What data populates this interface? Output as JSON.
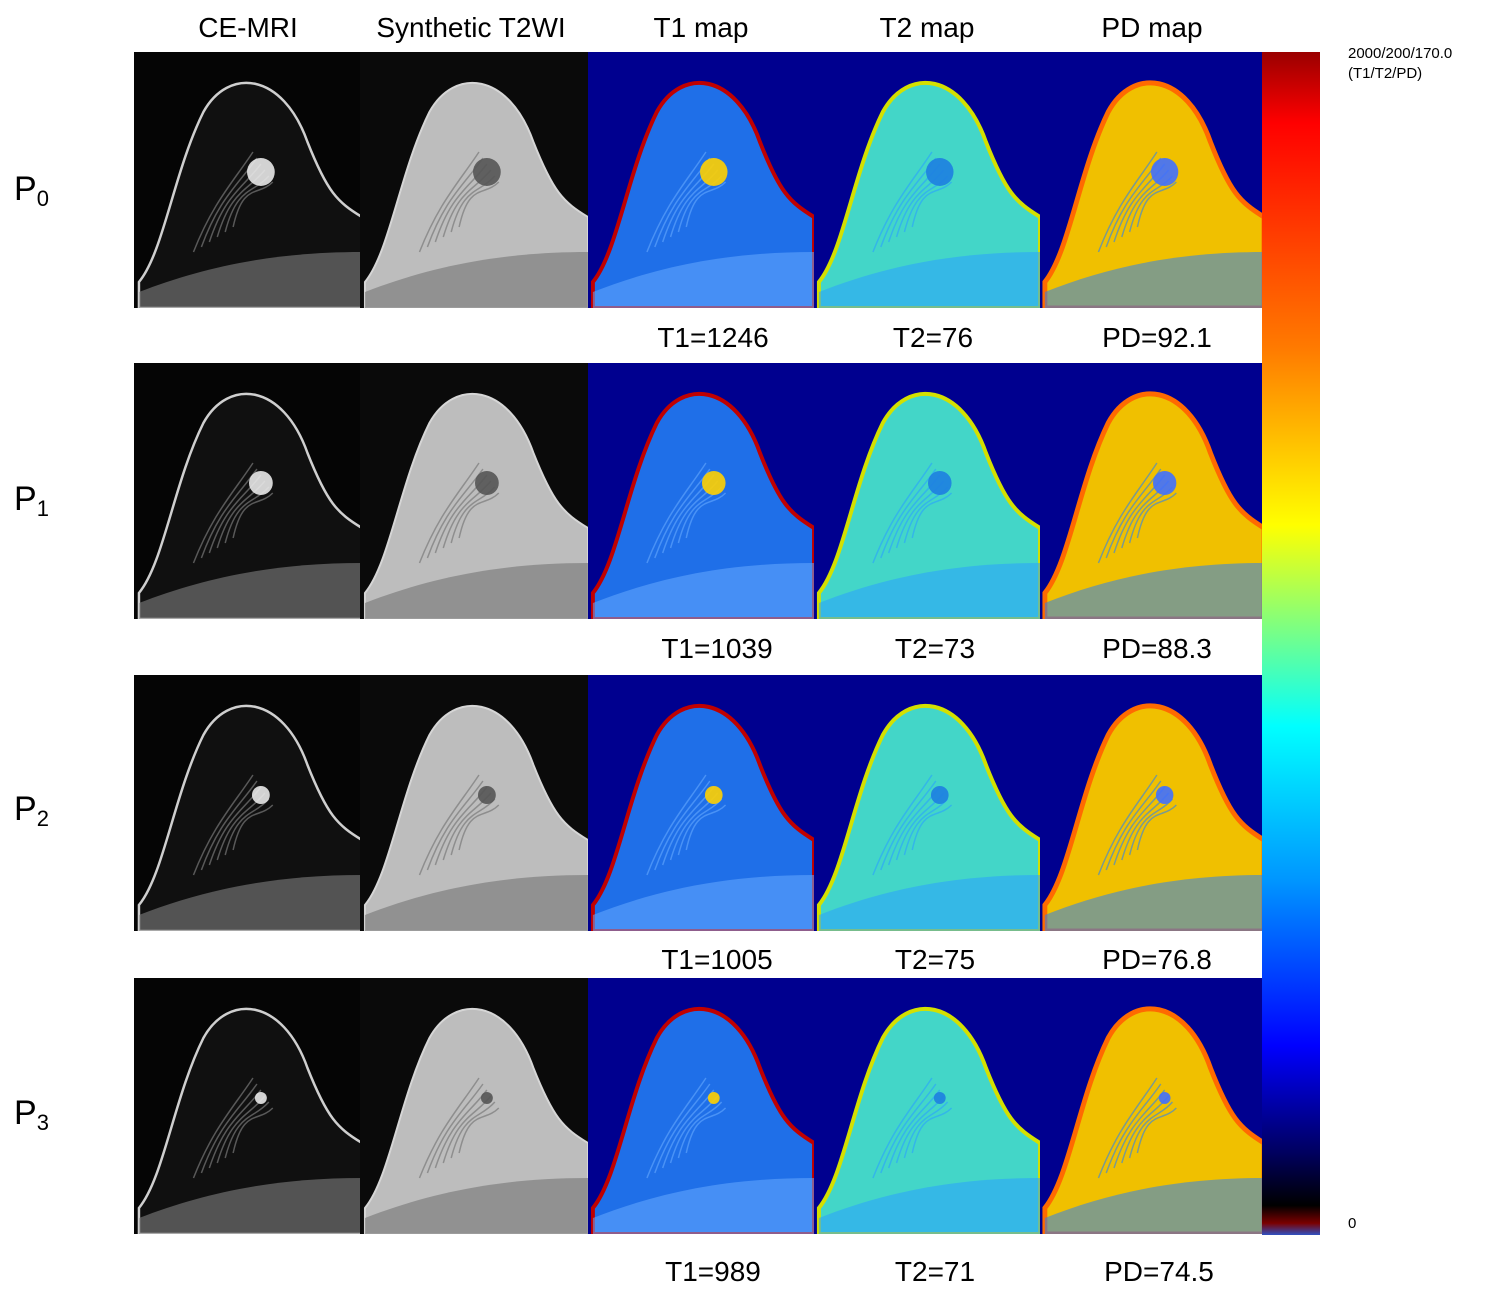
{
  "columns": [
    "CE-MRI",
    "Synthetic T2WI",
    "T1 map",
    "T2 map",
    "PD map"
  ],
  "rows": [
    {
      "letter": "P",
      "index": "0",
      "t1": "T1=1246",
      "t2": "T2=76",
      "pd": "PD=92.1"
    },
    {
      "letter": "P",
      "index": "1",
      "t1": "T1=1039",
      "t2": "T2=73",
      "pd": "PD=88.3"
    },
    {
      "letter": "P",
      "index": "2",
      "t1": "T1=1005",
      "t2": "T2=75",
      "pd": "PD=76.8"
    },
    {
      "letter": "P",
      "index": "3",
      "t1": "T1=989",
      "t2": "T2=71",
      "pd": "PD=74.5"
    }
  ],
  "colorbar": {
    "max_label": "2000/200/170.0",
    "max_sublabel": "(T1/T2/PD)",
    "min_label": "0"
  },
  "colors": {
    "map_background": "#00008f",
    "t1_tissue": "#1f6fe8",
    "t2_tissue": "#43d6c8",
    "pd_tissue": "#f0c000"
  }
}
